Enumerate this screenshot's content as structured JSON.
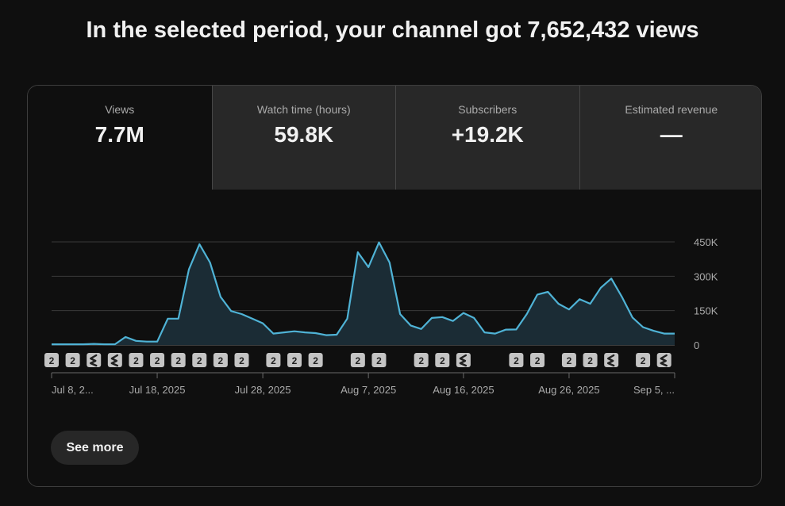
{
  "headline": "In the selected period, your channel got 7,652,432 views",
  "metrics": [
    {
      "label": "Views",
      "value": "7.7M",
      "active": true
    },
    {
      "label": "Watch time (hours)",
      "value": "59.8K",
      "active": false
    },
    {
      "label": "Subscribers",
      "value": "+19.2K",
      "active": false
    },
    {
      "label": "Estimated revenue",
      "value": "—",
      "active": false
    }
  ],
  "see_more": "See more",
  "colors": {
    "line": "#4fb3d6",
    "fill": "#1b2c35",
    "grid": "#3a3a3a",
    "badge": "#c4c4c4"
  },
  "chart_data": {
    "type": "area",
    "ylim": [
      0,
      450000
    ],
    "ytick_values": [
      0,
      150000,
      300000,
      450000
    ],
    "ytick_labels": [
      "0",
      "150K",
      "300K",
      "450K"
    ],
    "xtick_labels": [
      "Jul 8, 2...",
      "Jul 18, 2025",
      "Jul 28, 2025",
      "Aug 7, 2025",
      "Aug 16, 2025",
      "Aug 26, 2025",
      "Sep 5, ..."
    ],
    "xtick_day_index": [
      0,
      10,
      20,
      30,
      39,
      49,
      59
    ],
    "series": [
      {
        "values": [
          3000,
          3000,
          3000,
          3000,
          5000,
          3000,
          3000,
          35000,
          18000,
          15000,
          15000,
          115000,
          115000,
          330000,
          440000,
          360000,
          210000,
          148000,
          135000,
          115000,
          95000,
          50000,
          55000,
          60000,
          55000,
          52000,
          43000,
          45000,
          115000,
          405000,
          340000,
          448000,
          360000,
          135000,
          85000,
          70000,
          118000,
          122000,
          105000,
          140000,
          118000,
          55000,
          50000,
          67000,
          68000,
          135000,
          220000,
          232000,
          180000,
          155000,
          200000,
          180000,
          250000,
          290000,
          210000,
          120000,
          78000,
          62000,
          50000,
          50000
        ]
      }
    ],
    "video_markers": [
      {
        "day": 0,
        "kind": "2"
      },
      {
        "day": 2,
        "kind": "2"
      },
      {
        "day": 4,
        "kind": "short"
      },
      {
        "day": 6,
        "kind": "short"
      },
      {
        "day": 8,
        "kind": "2"
      },
      {
        "day": 10,
        "kind": "2"
      },
      {
        "day": 12,
        "kind": "2"
      },
      {
        "day": 14,
        "kind": "2"
      },
      {
        "day": 16,
        "kind": "2"
      },
      {
        "day": 18,
        "kind": "2"
      },
      {
        "day": 21,
        "kind": "2"
      },
      {
        "day": 23,
        "kind": "2"
      },
      {
        "day": 25,
        "kind": "2"
      },
      {
        "day": 29,
        "kind": "2"
      },
      {
        "day": 31,
        "kind": "2"
      },
      {
        "day": 35,
        "kind": "2"
      },
      {
        "day": 37,
        "kind": "2"
      },
      {
        "day": 39,
        "kind": "short"
      },
      {
        "day": 44,
        "kind": "2"
      },
      {
        "day": 46,
        "kind": "2"
      },
      {
        "day": 49,
        "kind": "2"
      },
      {
        "day": 51,
        "kind": "2"
      },
      {
        "day": 53,
        "kind": "short"
      },
      {
        "day": 56,
        "kind": "2"
      },
      {
        "day": 58,
        "kind": "short"
      }
    ]
  }
}
